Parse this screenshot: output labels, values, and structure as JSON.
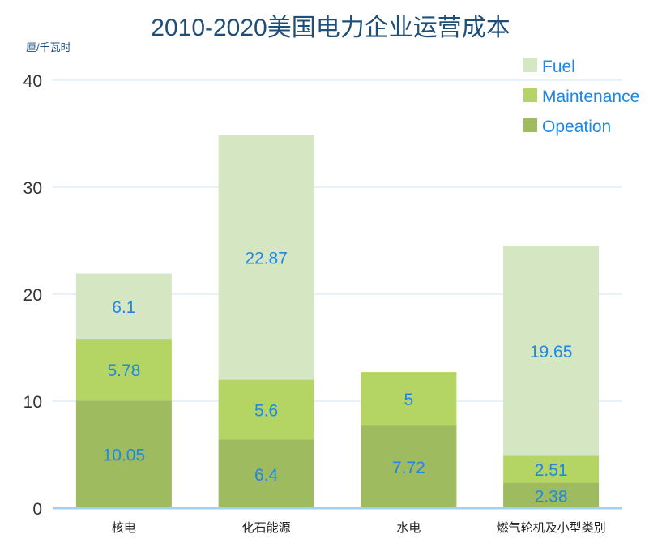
{
  "chart_data": {
    "type": "bar",
    "stacked": true,
    "title": "2010-2020美国电力企业运营成本",
    "ylabel": "厘/千瓦时",
    "xlabel": "",
    "ylim": [
      0,
      40
    ],
    "yticks": [
      0,
      10,
      20,
      30,
      40
    ],
    "grid": true,
    "legend_position": "top-right",
    "categories": [
      "核电",
      "化石能源",
      "水电",
      "燃气轮机及小型类别"
    ],
    "series": [
      {
        "name": "Opeation",
        "color": "#9ebb5f",
        "values": [
          10.05,
          6.4,
          7.72,
          2.38
        ],
        "labels": [
          "10.05",
          "6.4",
          "7.72",
          "2.38"
        ]
      },
      {
        "name": "Maintenance",
        "color": "#b4d563",
        "values": [
          5.78,
          5.6,
          5,
          2.51
        ],
        "labels": [
          "5.78",
          "5.6",
          "5",
          "2.51"
        ]
      },
      {
        "name": "Fuel",
        "color": "#d5e6c2",
        "values": [
          6.1,
          22.87,
          0,
          19.65
        ],
        "labels": [
          "6.1",
          "22.87",
          "",
          "19.65"
        ]
      }
    ],
    "colors": {
      "title": "#1f4e79",
      "label": "#1e88e5",
      "axis": "#9fd0f5",
      "grid": "#e4f2fd",
      "tick": "#333333"
    }
  }
}
